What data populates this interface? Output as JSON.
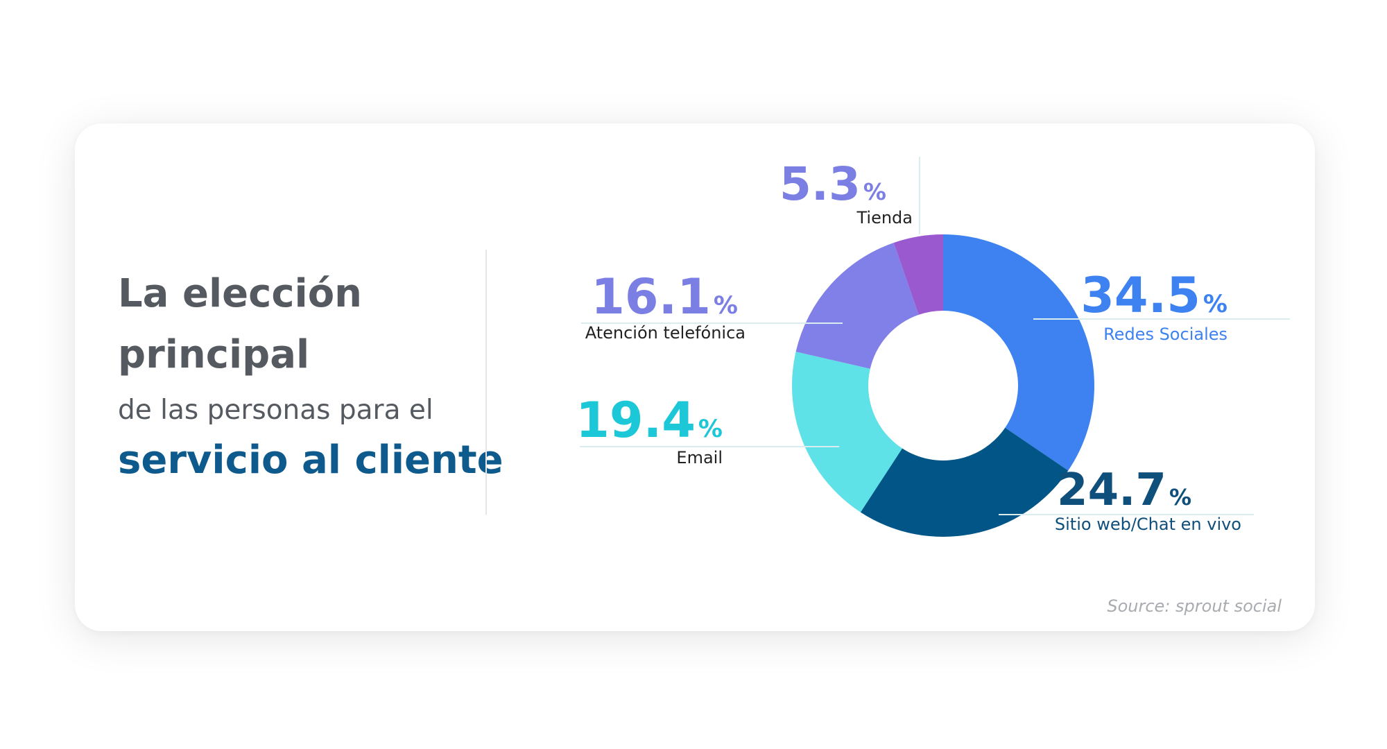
{
  "headline": {
    "line1": "La elección",
    "line2": "principal",
    "line3": "de las personas para el",
    "line4": "servicio al cliente"
  },
  "source": "Source: sprout social",
  "colors": {
    "redes": "#3d82f0",
    "sitio": "#025587",
    "email": "#5fe1e8",
    "telefono": "#8180e8",
    "tienda": "#9b59d0",
    "headline_text": "#555a60",
    "accent_text": "#0f5a8c"
  },
  "chart_data": {
    "type": "pie",
    "donut": true,
    "title": "",
    "slices": [
      {
        "label": "Redes Sociales",
        "value": 34.5,
        "percent_text": "34.5",
        "color": "#3d82f0",
        "label_color": "#3d82f0"
      },
      {
        "label": "Sitio web/Chat en vivo",
        "value": 24.7,
        "percent_text": "24.7",
        "color": "#025587",
        "label_color": "#0f4f7c"
      },
      {
        "label": "Email",
        "value": 19.4,
        "percent_text": "19.4",
        "color": "#5fe1e8",
        "label_color": "#1cc7d8"
      },
      {
        "label": "Atención telefónica",
        "value": 16.1,
        "percent_text": "16.1",
        "color": "#8180e8",
        "label_color": "#7b7fe4"
      },
      {
        "label": "Tienda",
        "value": 5.3,
        "percent_text": "5.3",
        "color": "#9b59d0",
        "label_color": "#7b7fe4"
      }
    ],
    "percent_symbol": "%"
  }
}
